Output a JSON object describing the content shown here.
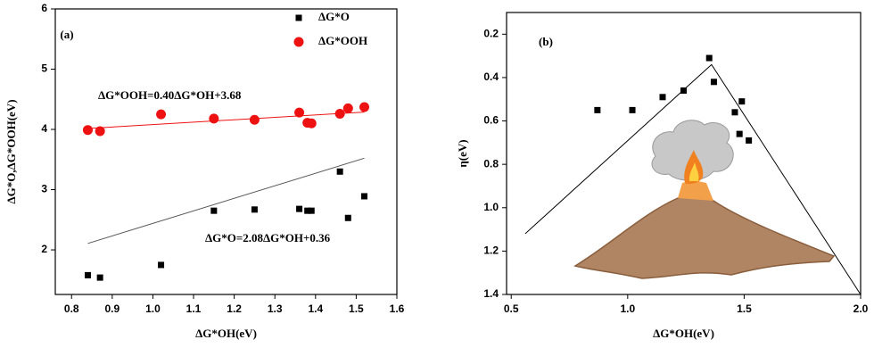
{
  "chart_data": [
    {
      "type": "scatter",
      "panel_label": "(a)",
      "x_label": "ΔG*OH(eV)",
      "y_label": "ΔG*O,ΔG*OOH(eV)",
      "xlim": [
        0.76,
        1.6
      ],
      "ylim": [
        1.26,
        6
      ],
      "xticks": [
        0.8,
        0.9,
        {
          "value": 1,
          "label": "1.0"
        },
        1.1,
        1.2,
        1.3,
        1.4,
        1.5,
        1.6
      ],
      "yticks": [
        2,
        3,
        4,
        5,
        6
      ],
      "series": [
        {
          "name": "ΔG*O",
          "color": "#000000",
          "marker": "square",
          "x": [
            0.84,
            0.87,
            1.02,
            1.15,
            1.25,
            1.36,
            1.38,
            1.39,
            1.46,
            1.48,
            1.52
          ],
          "values": [
            1.58,
            1.54,
            1.75,
            2.65,
            2.67,
            2.68,
            2.65,
            2.65,
            3.3,
            2.53,
            2.89
          ]
        },
        {
          "name": "ΔG*OOH",
          "color": "#ee1111",
          "marker": "circle",
          "x": [
            0.84,
            0.87,
            1.02,
            1.15,
            1.25,
            1.36,
            1.38,
            1.39,
            1.46,
            1.48,
            1.52
          ],
          "values": [
            3.99,
            3.97,
            4.25,
            4.18,
            4.16,
            4.28,
            4.11,
            4.1,
            4.26,
            4.35,
            4.37
          ]
        }
      ],
      "lines": [
        {
          "color": "#555555",
          "x": [
            0.84,
            1.52
          ],
          "values": [
            2.107,
            3.522
          ]
        },
        {
          "color": "#ee1111",
          "x": [
            0.84,
            1.52
          ],
          "values": [
            4.016,
            4.288
          ]
        }
      ],
      "annotations": [
        "ΔG*OOH=0.40ΔG*OH+3.68",
        "ΔG*O=2.08ΔG*OH+0.36"
      ],
      "legend": "upper right"
    },
    {
      "type": "scatter",
      "panel_label": "(b)",
      "x_label": "ΔG*OH(eV)",
      "y_label": "η(eV)",
      "xlim": [
        0.48,
        2.0
      ],
      "ylim": [
        0.1,
        1.4
      ],
      "y_inverted": true,
      "xticks": [
        0.5,
        {
          "value": 1,
          "label": "1.0"
        },
        1.5,
        {
          "value": 2,
          "label": "2.0"
        }
      ],
      "yticks": [
        0.2,
        0.4,
        0.6,
        0.8,
        {
          "value": 1,
          "label": "1.0"
        },
        1.2,
        1.4
      ],
      "series": [
        {
          "color": "#000000",
          "marker": "square",
          "x": [
            0.87,
            1.02,
            1.15,
            1.24,
            1.35,
            1.37,
            1.46,
            1.49,
            1.48,
            1.52
          ],
          "values": [
            0.55,
            0.55,
            0.49,
            0.46,
            0.31,
            0.42,
            0.56,
            0.51,
            0.66,
            0.69
          ]
        }
      ],
      "lines": [
        {
          "color": "#000000",
          "x": [
            0.56,
            1.36,
            2.0
          ],
          "values": [
            1.12,
            0.34,
            1.4
          ]
        }
      ]
    }
  ]
}
